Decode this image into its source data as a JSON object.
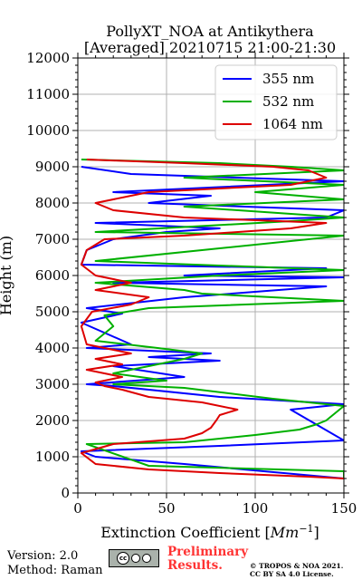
{
  "chart_data": {
    "type": "line",
    "title": "PollyXT_NOA at Antikythera",
    "subtitle": "[Averaged] 20210715 21:00-21:30",
    "xlabel_prefix": "Extinction Coefficient [",
    "xlabel_unit": "Mm",
    "xlabel_exp": "−1",
    "xlabel_suffix": "]",
    "ylabel": "Height (m)",
    "xlim": [
      0,
      150
    ],
    "ylim": [
      0,
      12000
    ],
    "x_ticks": [
      0,
      50,
      100,
      150
    ],
    "y_ticks": [
      0,
      1000,
      2000,
      3000,
      4000,
      5000,
      6000,
      7000,
      8000,
      9000,
      10000,
      11000,
      12000
    ],
    "grid": true,
    "legend_position": "top-right",
    "series": [
      {
        "name": "355 nm",
        "color": "#0000ff",
        "points": [
          [
            150,
            400
          ],
          [
            60,
            800
          ],
          [
            10,
            1000
          ],
          [
            2,
            1150
          ],
          [
            80,
            1300
          ],
          [
            150,
            1450
          ],
          [
            120,
            2300
          ],
          [
            150,
            2450
          ],
          [
            80,
            2650
          ],
          [
            20,
            2950
          ],
          [
            5,
            3000
          ],
          [
            60,
            3200
          ],
          [
            20,
            3500
          ],
          [
            80,
            3650
          ],
          [
            40,
            3750
          ],
          [
            75,
            3850
          ],
          [
            5,
            4000
          ],
          [
            30,
            4100
          ],
          [
            2,
            4700
          ],
          [
            25,
            4950
          ],
          [
            5,
            5100
          ],
          [
            60,
            5400
          ],
          [
            140,
            5700
          ],
          [
            20,
            5800
          ],
          [
            150,
            5950
          ],
          [
            60,
            6000
          ],
          [
            140,
            6200
          ],
          [
            2,
            6300
          ],
          [
            5,
            6700
          ],
          [
            20,
            7000
          ],
          [
            50,
            7200
          ],
          [
            80,
            7300
          ],
          [
            10,
            7450
          ],
          [
            140,
            7600
          ],
          [
            150,
            7800
          ],
          [
            40,
            8000
          ],
          [
            75,
            8200
          ],
          [
            20,
            8300
          ],
          [
            150,
            8600
          ],
          [
            30,
            8800
          ],
          [
            2,
            9000
          ]
        ]
      },
      {
        "name": "532 nm",
        "color": "#00b000",
        "points": [
          [
            150,
            400
          ],
          [
            150,
            600
          ],
          [
            40,
            750
          ],
          [
            5,
            1350
          ],
          [
            60,
            1400
          ],
          [
            100,
            1600
          ],
          [
            125,
            1750
          ],
          [
            135,
            1900
          ],
          [
            140,
            2000
          ],
          [
            145,
            2200
          ],
          [
            150,
            2400
          ],
          [
            110,
            2600
          ],
          [
            60,
            2900
          ],
          [
            20,
            3000
          ],
          [
            50,
            3100
          ],
          [
            20,
            3300
          ],
          [
            40,
            3500
          ],
          [
            60,
            3700
          ],
          [
            70,
            3850
          ],
          [
            45,
            4000
          ],
          [
            10,
            4200
          ],
          [
            20,
            4600
          ],
          [
            15,
            4900
          ],
          [
            40,
            5100
          ],
          [
            150,
            5300
          ],
          [
            70,
            5500
          ],
          [
            60,
            5600
          ],
          [
            10,
            5800
          ],
          [
            80,
            6000
          ],
          [
            150,
            6150
          ],
          [
            10,
            6400
          ],
          [
            150,
            7100
          ],
          [
            10,
            7200
          ],
          [
            120,
            7500
          ],
          [
            150,
            7600
          ],
          [
            60,
            7900
          ],
          [
            150,
            8100
          ],
          [
            100,
            8300
          ],
          [
            150,
            8500
          ],
          [
            60,
            8700
          ],
          [
            150,
            8900
          ],
          [
            120,
            9000
          ],
          [
            80,
            9100
          ],
          [
            2,
            9200
          ]
        ]
      },
      {
        "name": "1064 nm",
        "color": "#dd0000",
        "points": [
          [
            150,
            400
          ],
          [
            130,
            450
          ],
          [
            80,
            550
          ],
          [
            40,
            650
          ],
          [
            10,
            800
          ],
          [
            2,
            1100
          ],
          [
            20,
            1350
          ],
          [
            60,
            1500
          ],
          [
            70,
            1650
          ],
          [
            75,
            1800
          ],
          [
            78,
            2000
          ],
          [
            80,
            2150
          ],
          [
            90,
            2300
          ],
          [
            70,
            2500
          ],
          [
            40,
            2650
          ],
          [
            25,
            2850
          ],
          [
            15,
            2950
          ],
          [
            10,
            3050
          ],
          [
            25,
            3200
          ],
          [
            15,
            3300
          ],
          [
            5,
            3400
          ],
          [
            25,
            3550
          ],
          [
            10,
            3700
          ],
          [
            30,
            3850
          ],
          [
            15,
            4000
          ],
          [
            5,
            4100
          ],
          [
            2,
            4600
          ],
          [
            8,
            5000
          ],
          [
            30,
            5200
          ],
          [
            40,
            5400
          ],
          [
            10,
            5600
          ],
          [
            30,
            5800
          ],
          [
            10,
            6000
          ],
          [
            2,
            6300
          ],
          [
            5,
            6700
          ],
          [
            15,
            7000
          ],
          [
            60,
            7100
          ],
          [
            120,
            7300
          ],
          [
            140,
            7450
          ],
          [
            60,
            7600
          ],
          [
            20,
            7800
          ],
          [
            10,
            8000
          ],
          [
            40,
            8300
          ],
          [
            120,
            8500
          ],
          [
            140,
            8700
          ],
          [
            130,
            8900
          ],
          [
            110,
            9000
          ],
          [
            60,
            9100
          ],
          [
            5,
            9200
          ]
        ]
      }
    ]
  },
  "footer": {
    "version": "Version: 2.0",
    "method": "Method: Raman",
    "cc_label": "cc",
    "preliminary_line1": "Preliminary",
    "preliminary_line2": "Results.",
    "copyright_line1": "© TROPOS & NOA 2021.",
    "copyright_line2": "CC BY SA 4.0 License."
  }
}
